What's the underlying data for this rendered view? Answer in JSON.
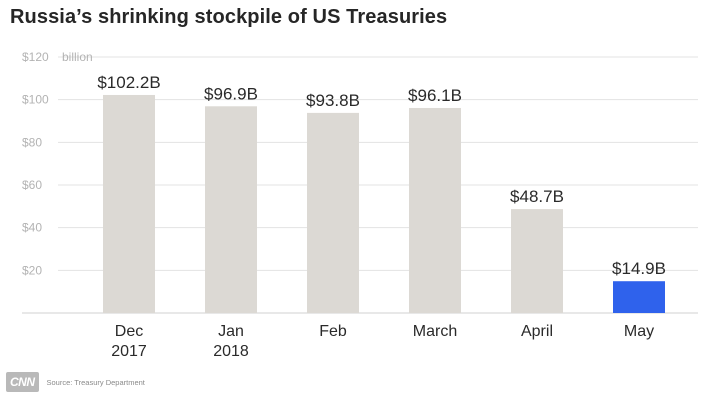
{
  "header": {
    "title": "Russia’s shrinking stockpile of US Treasuries"
  },
  "footer": {
    "logo": "CNN",
    "source": "Source: Treasury Department"
  },
  "colors": {
    "bar": "#dcd9d4",
    "highlight": "#2f62ec",
    "grid": "#e3e3e3",
    "tick": "#b3b3b3",
    "label": "#2a2a2a"
  },
  "chart_data": {
    "type": "bar",
    "title": "Russia’s shrinking stockpile of US Treasuries",
    "ylabel": "billion",
    "ylim": [
      0,
      120
    ],
    "y_ticks": [
      20,
      40,
      60,
      80,
      100,
      120
    ],
    "y_tick_labels": [
      "$20",
      "$40",
      "$60",
      "$80",
      "$100",
      "$120"
    ],
    "y_unit_label": "billion",
    "categories": [
      [
        "Dec",
        "2017"
      ],
      [
        "Jan",
        "2018"
      ],
      [
        "Feb"
      ],
      [
        "March"
      ],
      [
        "April"
      ],
      [
        "May"
      ]
    ],
    "values": [
      102.2,
      96.9,
      93.8,
      96.1,
      48.7,
      14.9
    ],
    "data_labels": [
      "$102.2B",
      "$96.9B",
      "$93.8B",
      "$96.1B",
      "$48.7B",
      "$14.9B"
    ],
    "highlight_index": 5,
    "grid": true
  }
}
